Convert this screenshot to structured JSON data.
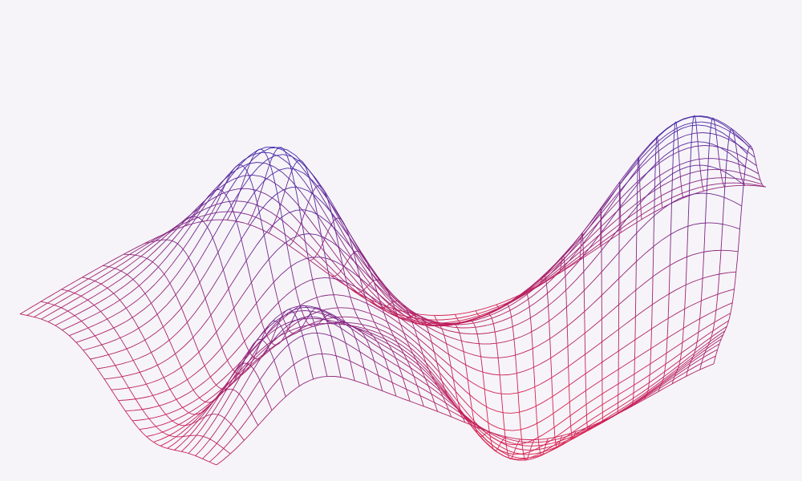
{
  "scene": {
    "background_color": "#f6f4f8",
    "mesh": {
      "description_kind": "wireframe-surface",
      "rows": 29,
      "cols": 37,
      "color_high": "#3b2bb0",
      "color_low": "#d8204f"
    }
  }
}
